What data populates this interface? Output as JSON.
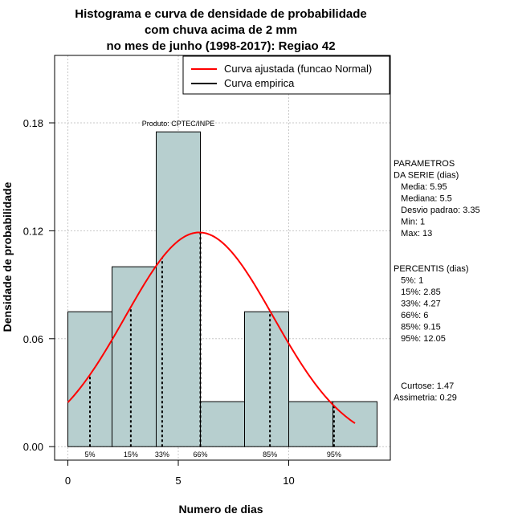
{
  "chart_data": {
    "type": "bar",
    "title_lines": [
      "Histograma e curva de densidade de probabilidade",
      "com chuva acima de 2 mm",
      "no mes de junho (1998-2017): Regiao 42"
    ],
    "xlabel": "Numero de dias",
    "ylabel": "Densidade de probabilidade",
    "xlim": [
      -0.6,
      14.6
    ],
    "ylim": [
      -0.0075,
      0.2175
    ],
    "x_ticks": [
      0,
      5,
      10
    ],
    "y_ticks": [
      0.0,
      0.06,
      0.12,
      0.18
    ],
    "y_tick_labels": [
      "0.00",
      "0.06",
      "0.12",
      "0.18"
    ],
    "grid": true,
    "bar_color": "#b7cfcf",
    "bins": [
      {
        "from": 0,
        "to": 2,
        "density": 0.075
      },
      {
        "from": 2,
        "to": 4,
        "density": 0.1
      },
      {
        "from": 4,
        "to": 6,
        "density": 0.175
      },
      {
        "from": 6,
        "to": 8,
        "density": 0.025
      },
      {
        "from": 8,
        "to": 10,
        "density": 0.075
      },
      {
        "from": 10,
        "to": 12,
        "density": 0.025
      },
      {
        "from": 12,
        "to": 14,
        "density": 0.025
      }
    ],
    "normal_curve": {
      "name": "Curva ajustada (funcao Normal)",
      "mean": 5.95,
      "sd": 3.35,
      "from": 0,
      "to": 13,
      "color": "#ff0000"
    },
    "empirical_name": "Curva empirica",
    "product_label": "Produto: CPTEC/INPE",
    "legend_position": "top-right",
    "percentiles": [
      {
        "label": "5%",
        "value": 1
      },
      {
        "label": "15%",
        "value": 2.85
      },
      {
        "label": "33%",
        "value": 4.27
      },
      {
        "label": "66%",
        "value": 6
      },
      {
        "label": "85%",
        "value": 9.15
      },
      {
        "label": "95%",
        "value": 12.05
      }
    ]
  },
  "side_panel": {
    "params_lines": [
      "PARAMETROS",
      "DA SERIE (dias)",
      "   Media: 5.95",
      "   Mediana: 5.5",
      "   Desvio padrao: 3.35",
      "   Min: 1",
      "   Max: 13"
    ],
    "percentis_lines": [
      "PERCENTIS (dias)",
      "   5%: 1",
      "   15%: 2.85",
      "   33%: 4.27",
      "   66%: 6",
      "   85%: 9.15",
      "   95%: 12.05"
    ],
    "extra_lines": [
      "   Curtose: 1.47",
      "Assimetria: 0.29"
    ]
  }
}
